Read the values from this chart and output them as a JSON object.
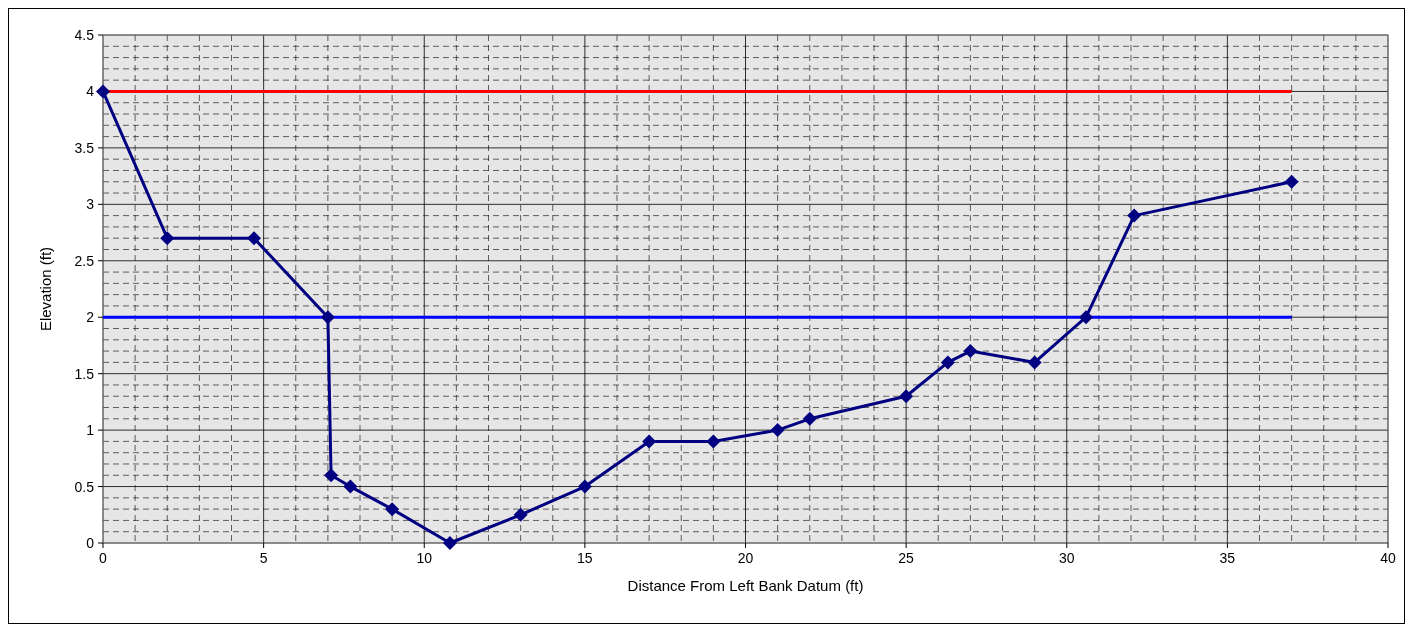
{
  "chart_data": {
    "type": "line",
    "xlabel": "Distance From Left Bank Datum  (ft)",
    "ylabel": "Elevation (ft)",
    "xlim": [
      0,
      40
    ],
    "xticks": [
      0,
      5,
      10,
      15,
      20,
      25,
      30,
      35,
      40
    ],
    "ylim": [
      0,
      4.5
    ],
    "yticks": [
      0,
      0.5,
      1,
      1.5,
      2,
      2.5,
      3,
      3.5,
      4,
      4.5
    ],
    "grid": true,
    "series": [
      {
        "color": "#ff0000",
        "marker": "none",
        "x": [
          0,
          37
        ],
        "values": [
          4,
          4
        ]
      },
      {
        "color": "#0000ff",
        "marker": "none",
        "x": [
          0,
          37
        ],
        "values": [
          2,
          2
        ]
      },
      {
        "color": "#000080",
        "marker": "diamond",
        "x": [
          0,
          2,
          4.7,
          7,
          7.1,
          7.7,
          9,
          10.8,
          13,
          15,
          17,
          19,
          21,
          22,
          25,
          26.3,
          27,
          29,
          30.6,
          32.1,
          37
        ],
        "values": [
          4,
          2.7,
          2.7,
          2,
          0.6,
          0.5,
          0.3,
          0,
          0.25,
          0.5,
          0.9,
          0.9,
          1,
          1.1,
          1.3,
          1.6,
          1.7,
          1.6,
          2,
          2.9,
          3.2
        ]
      }
    ]
  }
}
